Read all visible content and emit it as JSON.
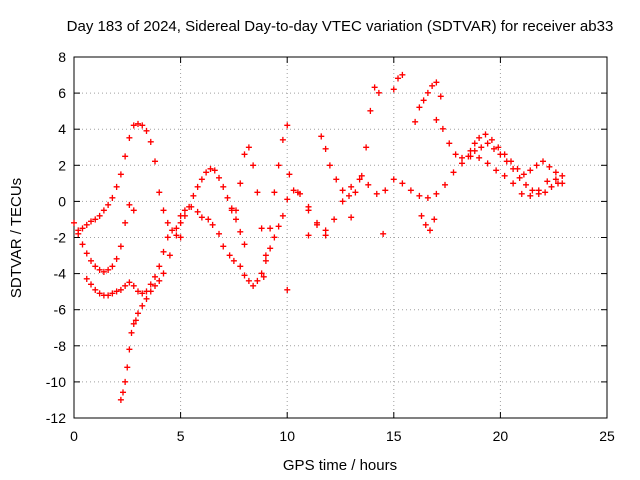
{
  "chart_data": {
    "type": "scatter",
    "title": "Day 183 of 2024, Sidereal Day-to-day VTEC variation (SDTVAR) for receiver ab33",
    "xlabel": "GPS time / hours",
    "ylabel": "SDTVAR / TECUs",
    "xlim": [
      0,
      25
    ],
    "ylim": [
      -12,
      8
    ],
    "xticks": [
      0,
      5,
      10,
      15,
      20,
      25
    ],
    "xtick_labels": [
      "0",
      "5",
      "10",
      "15",
      "20",
      "25"
    ],
    "yticks": [
      -12,
      -10,
      -8,
      -6,
      -4,
      -2,
      0,
      2,
      4,
      6,
      8
    ],
    "ytick_labels": [
      "-12",
      "-10",
      "-8",
      "-6",
      "-4",
      "-2",
      "0",
      "2",
      "4",
      "6",
      "8"
    ],
    "grid": true,
    "marker": "+",
    "marker_color": "#ff0000",
    "series": [
      {
        "name": "SDTVAR",
        "x": [
          0.0,
          0.2,
          0.4,
          0.6,
          0.8,
          1.0,
          1.2,
          1.4,
          1.6,
          1.8,
          2.0,
          2.2,
          2.4,
          2.6,
          2.8,
          0.2,
          0.4,
          0.6,
          0.8,
          1.0,
          1.2,
          1.4,
          1.6,
          1.8,
          2.0,
          2.2,
          2.4,
          2.6,
          2.8,
          3.0,
          3.2,
          3.4,
          3.6,
          3.8,
          4.0,
          4.2,
          4.4,
          4.6,
          4.8,
          5.0,
          0.6,
          0.8,
          1.0,
          1.2,
          1.4,
          1.6,
          1.8,
          2.0,
          2.2,
          2.4,
          2.6,
          2.8,
          3.0,
          3.2,
          3.4,
          3.6,
          3.8,
          4.0,
          4.2,
          4.4,
          2.2,
          2.3,
          2.4,
          2.5,
          2.6,
          2.7,
          2.8,
          2.9,
          3.0,
          3.2,
          3.4,
          3.6,
          3.8,
          4.0,
          4.2,
          4.5,
          4.8,
          5.0,
          5.2,
          5.5,
          5.8,
          6.0,
          6.3,
          6.5,
          6.8,
          7.0,
          7.3,
          7.5,
          7.8,
          8.0,
          8.2,
          8.4,
          8.6,
          8.8,
          9.0,
          9.2,
          9.4,
          9.6,
          9.8,
          10.0,
          10.3,
          10.6,
          11.0,
          11.4,
          11.8,
          5.0,
          5.2,
          5.4,
          5.6,
          5.8,
          6.0,
          6.2,
          6.4,
          6.6,
          6.8,
          7.0,
          7.2,
          7.4,
          7.6,
          7.8,
          8.0,
          7.6,
          7.8,
          8.0,
          8.2,
          8.4,
          8.6,
          8.8,
          9.0,
          9.2,
          9.4,
          9.6,
          9.8,
          10.0,
          10.1,
          10.5,
          11.0,
          11.4,
          11.8,
          12.2,
          12.6,
          13.0,
          13.4,
          13.8,
          14.2,
          14.6,
          15.0,
          15.4,
          15.8,
          16.2,
          16.6,
          17.0,
          17.4,
          17.8,
          18.2,
          18.6,
          19.0,
          19.4,
          19.8,
          20.2,
          20.6,
          21.0,
          21.4,
          21.8,
          22.2,
          22.6,
          22.9,
          11.6,
          11.8,
          12.0,
          12.3,
          12.6,
          12.9,
          13.2,
          13.5,
          13.7,
          13.9,
          14.1,
          14.3,
          15.0,
          15.2,
          15.4,
          16.0,
          16.2,
          16.4,
          16.6,
          16.8,
          17.0,
          17.2,
          18.6,
          18.8,
          19.0,
          19.3,
          19.6,
          19.9,
          20.2,
          20.5,
          20.8,
          21.1,
          21.4,
          21.7,
          22.0,
          22.3,
          22.6,
          22.9,
          17.0,
          17.3,
          17.6,
          17.9,
          18.2,
          18.5,
          18.8,
          19.1,
          19.4,
          19.7,
          20.0,
          20.3,
          20.6,
          20.9,
          21.2,
          21.5,
          21.8,
          22.1,
          22.4,
          22.7,
          16.3,
          16.5,
          16.7,
          16.9,
          10.0,
          11.0,
          13.0,
          14.5,
          7.4,
          8.9
        ],
        "y": [
          -1.2,
          -1.8,
          -2.4,
          -2.9,
          -3.3,
          -3.6,
          -3.8,
          -3.9,
          -3.8,
          -3.6,
          -3.2,
          -2.5,
          -1.2,
          -0.2,
          -0.5,
          -1.6,
          -1.5,
          -1.3,
          -1.1,
          -1.0,
          -0.8,
          -0.5,
          -0.2,
          0.2,
          0.8,
          1.5,
          2.5,
          3.5,
          4.2,
          4.3,
          4.2,
          3.9,
          3.3,
          2.2,
          0.5,
          -0.5,
          -1.2,
          -1.6,
          -1.9,
          -2.0,
          -4.3,
          -4.6,
          -4.9,
          -5.1,
          -5.2,
          -5.2,
          -5.1,
          -5.0,
          -4.9,
          -4.7,
          -4.5,
          -4.7,
          -5.0,
          -5.1,
          -5.0,
          -4.6,
          -4.2,
          -3.6,
          -2.8,
          -2.0,
          -11.0,
          -10.6,
          -10.0,
          -9.2,
          -8.2,
          -7.3,
          -6.8,
          -6.6,
          -6.2,
          -5.8,
          -5.4,
          -5.0,
          -4.7,
          -4.4,
          -4.0,
          -3.0,
          -1.5,
          -0.8,
          -0.5,
          -0.3,
          -0.6,
          -0.9,
          -1.0,
          -1.3,
          -1.8,
          -2.5,
          -3.0,
          -3.3,
          -3.6,
          -4.1,
          -4.4,
          -4.7,
          -4.4,
          -4.0,
          -3.3,
          -2.6,
          -2.0,
          -1.4,
          -0.8,
          0.1,
          0.6,
          0.4,
          -0.3,
          -1.2,
          -1.9,
          -1.2,
          -0.8,
          -0.3,
          0.3,
          0.8,
          1.2,
          1.6,
          1.8,
          1.7,
          1.3,
          0.8,
          0.2,
          -0.4,
          -1.0,
          -1.7,
          -2.4,
          -0.5,
          1.0,
          2.6,
          3.0,
          2.0,
          0.5,
          -1.5,
          -3.0,
          -1.5,
          0.5,
          2.0,
          3.4,
          4.2,
          1.5,
          0.5,
          -0.5,
          -1.3,
          -1.6,
          -1.0,
          0.0,
          0.8,
          1.2,
          0.9,
          0.4,
          0.6,
          1.2,
          1.0,
          0.6,
          0.3,
          0.2,
          0.4,
          0.9,
          1.6,
          2.1,
          2.5,
          2.4,
          2.1,
          1.7,
          1.4,
          1.0,
          0.4,
          0.3,
          0.6,
          1.1,
          1.2,
          1.0,
          3.6,
          2.9,
          2.0,
          1.2,
          0.6,
          0.3,
          0.5,
          1.4,
          3.0,
          5.0,
          6.3,
          6.0,
          6.2,
          6.8,
          7.0,
          4.4,
          5.2,
          5.6,
          6.0,
          6.4,
          6.6,
          5.8,
          2.8,
          3.2,
          3.5,
          3.7,
          3.4,
          3.0,
          2.6,
          2.2,
          1.8,
          1.5,
          1.7,
          2.0,
          2.2,
          1.9,
          1.6,
          1.4,
          4.5,
          4.0,
          3.2,
          2.6,
          2.4,
          2.5,
          2.8,
          3.0,
          3.2,
          2.9,
          2.6,
          2.2,
          1.8,
          1.3,
          0.9,
          0.6,
          0.4,
          0.5,
          0.8,
          1.0,
          -0.8,
          -1.3,
          -1.6,
          -1.0,
          -4.9,
          -1.9,
          -0.9,
          -1.8,
          -0.5,
          -4.2
        ]
      }
    ]
  }
}
